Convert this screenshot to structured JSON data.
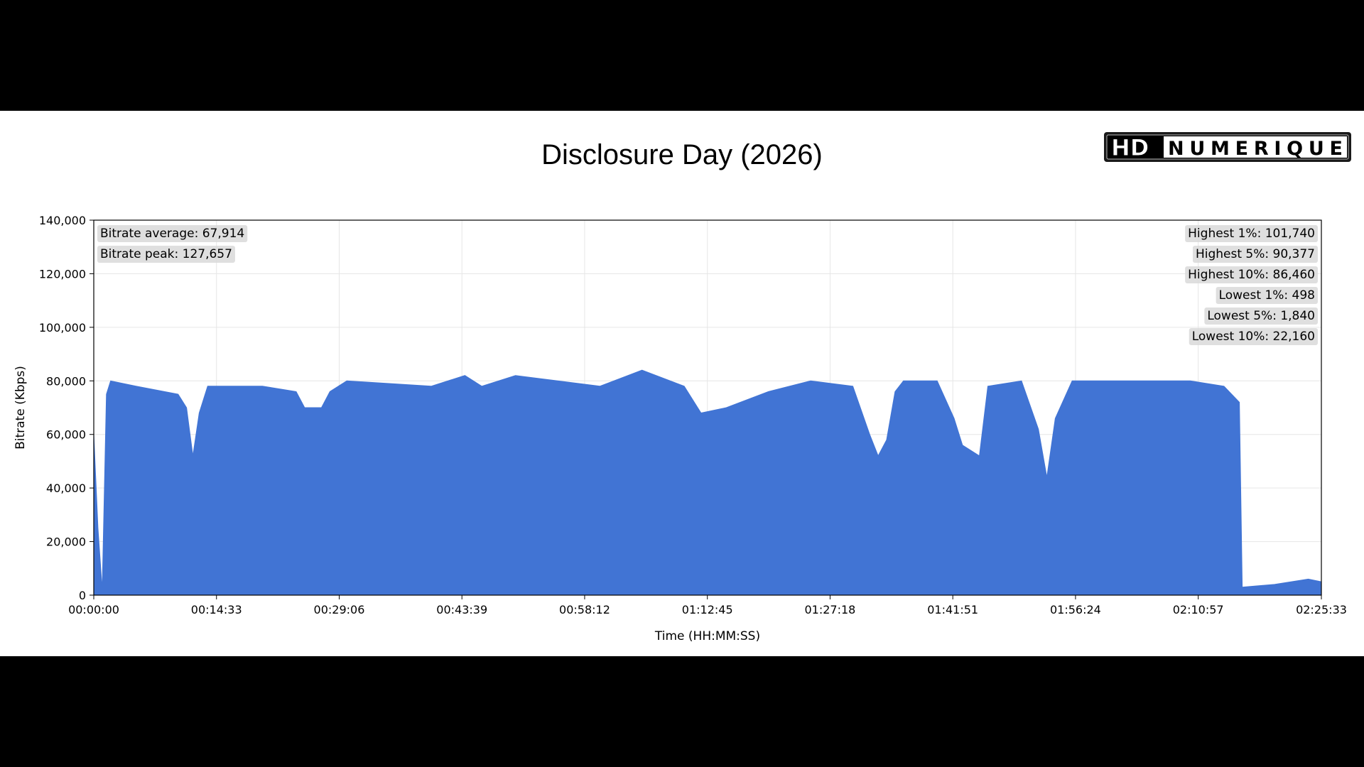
{
  "chart_data": {
    "type": "area",
    "title": "Disclosure Day (2026)",
    "xlabel": "Time (HH:MM:SS)",
    "ylabel": "Bitrate (Kbps)",
    "ylim": [
      0,
      140000
    ],
    "xlim": [
      "00:00:00",
      "02:25:33"
    ],
    "x_ticks": [
      "00:00:00",
      "00:14:33",
      "00:29:06",
      "00:43:39",
      "00:58:12",
      "01:12:45",
      "01:27:18",
      "01:41:51",
      "01:56:24",
      "02:10:57",
      "02:25:33"
    ],
    "y_ticks": [
      "0",
      "20,000",
      "40,000",
      "60,000",
      "80,000",
      "100,000",
      "120,000",
      "140,000"
    ],
    "grid": true,
    "series": [
      {
        "color": "#4174d4",
        "x": [
          "00:00:00",
          "00:00:30",
          "00:01:00",
          "00:01:30",
          "00:02:00",
          "00:05:00",
          "00:10:00",
          "00:11:00",
          "00:11:45",
          "00:12:30",
          "00:13:30",
          "00:20:00",
          "00:24:00",
          "00:25:00",
          "00:27:00",
          "00:28:00",
          "00:30:00",
          "00:40:00",
          "00:44:00",
          "00:46:00",
          "00:50:00",
          "00:55:00",
          "01:00:00",
          "01:05:00",
          "01:10:00",
          "01:12:00",
          "01:15:00",
          "01:20:00",
          "01:25:00",
          "01:30:00",
          "01:32:00",
          "01:33:00",
          "01:34:00",
          "01:35:00",
          "01:36:00",
          "01:40:00",
          "01:42:00",
          "01:43:00",
          "01:45:00",
          "01:46:00",
          "01:50:00",
          "01:52:00",
          "01:53:00",
          "01:54:00",
          "01:56:00",
          "02:00:00",
          "02:10:00",
          "02:14:00",
          "02:15:50",
          "02:16:10",
          "02:20:00",
          "02:24:00",
          "02:25:33"
        ],
        "values": [
          60000,
          25000,
          2000,
          75000,
          80000,
          78000,
          75000,
          70000,
          52000,
          68000,
          78000,
          78000,
          76000,
          70000,
          70000,
          76000,
          80000,
          78000,
          82000,
          78000,
          82000,
          80000,
          78000,
          84000,
          78000,
          68000,
          70000,
          76000,
          80000,
          78000,
          60000,
          52000,
          58000,
          76000,
          80000,
          80000,
          66000,
          56000,
          52000,
          78000,
          80000,
          62000,
          44000,
          66000,
          80000,
          80000,
          80000,
          78000,
          72000,
          3000,
          4000,
          6000,
          5000
        ]
      }
    ],
    "annotations_left": [
      "Bitrate average: 67,914",
      "Bitrate peak: 127,657"
    ],
    "annotations_right": [
      "Highest 1%: 101,740",
      "Highest 5%: 90,377",
      "Highest 10%: 86,460",
      "Lowest 1%: 498",
      "Lowest 5%: 1,840",
      "Lowest 10%: 22,160"
    ]
  },
  "logo": {
    "text_hd": "HD",
    "text_brand": "NUMERIQUE"
  }
}
